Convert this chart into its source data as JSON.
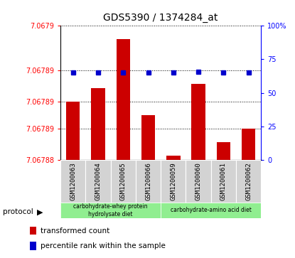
{
  "title": "GDS5390 / 1374284_at",
  "samples": [
    "GSM1200063",
    "GSM1200064",
    "GSM1200065",
    "GSM1200066",
    "GSM1200059",
    "GSM1200060",
    "GSM1200061",
    "GSM1200062"
  ],
  "bar_values": [
    7.067893,
    7.067896,
    7.067907,
    7.06789,
    7.067881,
    7.067897,
    7.067884,
    7.067887
  ],
  "percentile_values": [
    65.0,
    65.0,
    65.0,
    65.0,
    65.0,
    65.5,
    65.0,
    65.0
  ],
  "ymin": 7.06788,
  "ymax": 7.06791,
  "left_ytick_pos": [
    7.06788,
    7.067887,
    7.067893,
    7.0679,
    7.06791
  ],
  "left_ytick_labels": [
    "7.06788",
    "7.06789",
    "7.06789",
    "7.06789",
    "7.0679"
  ],
  "right_ytick_pos": [
    0,
    25,
    50,
    75,
    100
  ],
  "right_ytick_labels": [
    "0",
    "25",
    "50",
    "75",
    "100%"
  ],
  "bar_color": "#cc0000",
  "dot_color": "#0000cc",
  "sample_bg": "#d3d3d3",
  "proto_color": "#90ee90",
  "group1_label": "carbohydrate-whey protein\nhydrolysate diet",
  "group2_label": "carbohydrate-amino acid diet",
  "legend_red_label": "transformed count",
  "legend_blue_label": "percentile rank within the sample"
}
